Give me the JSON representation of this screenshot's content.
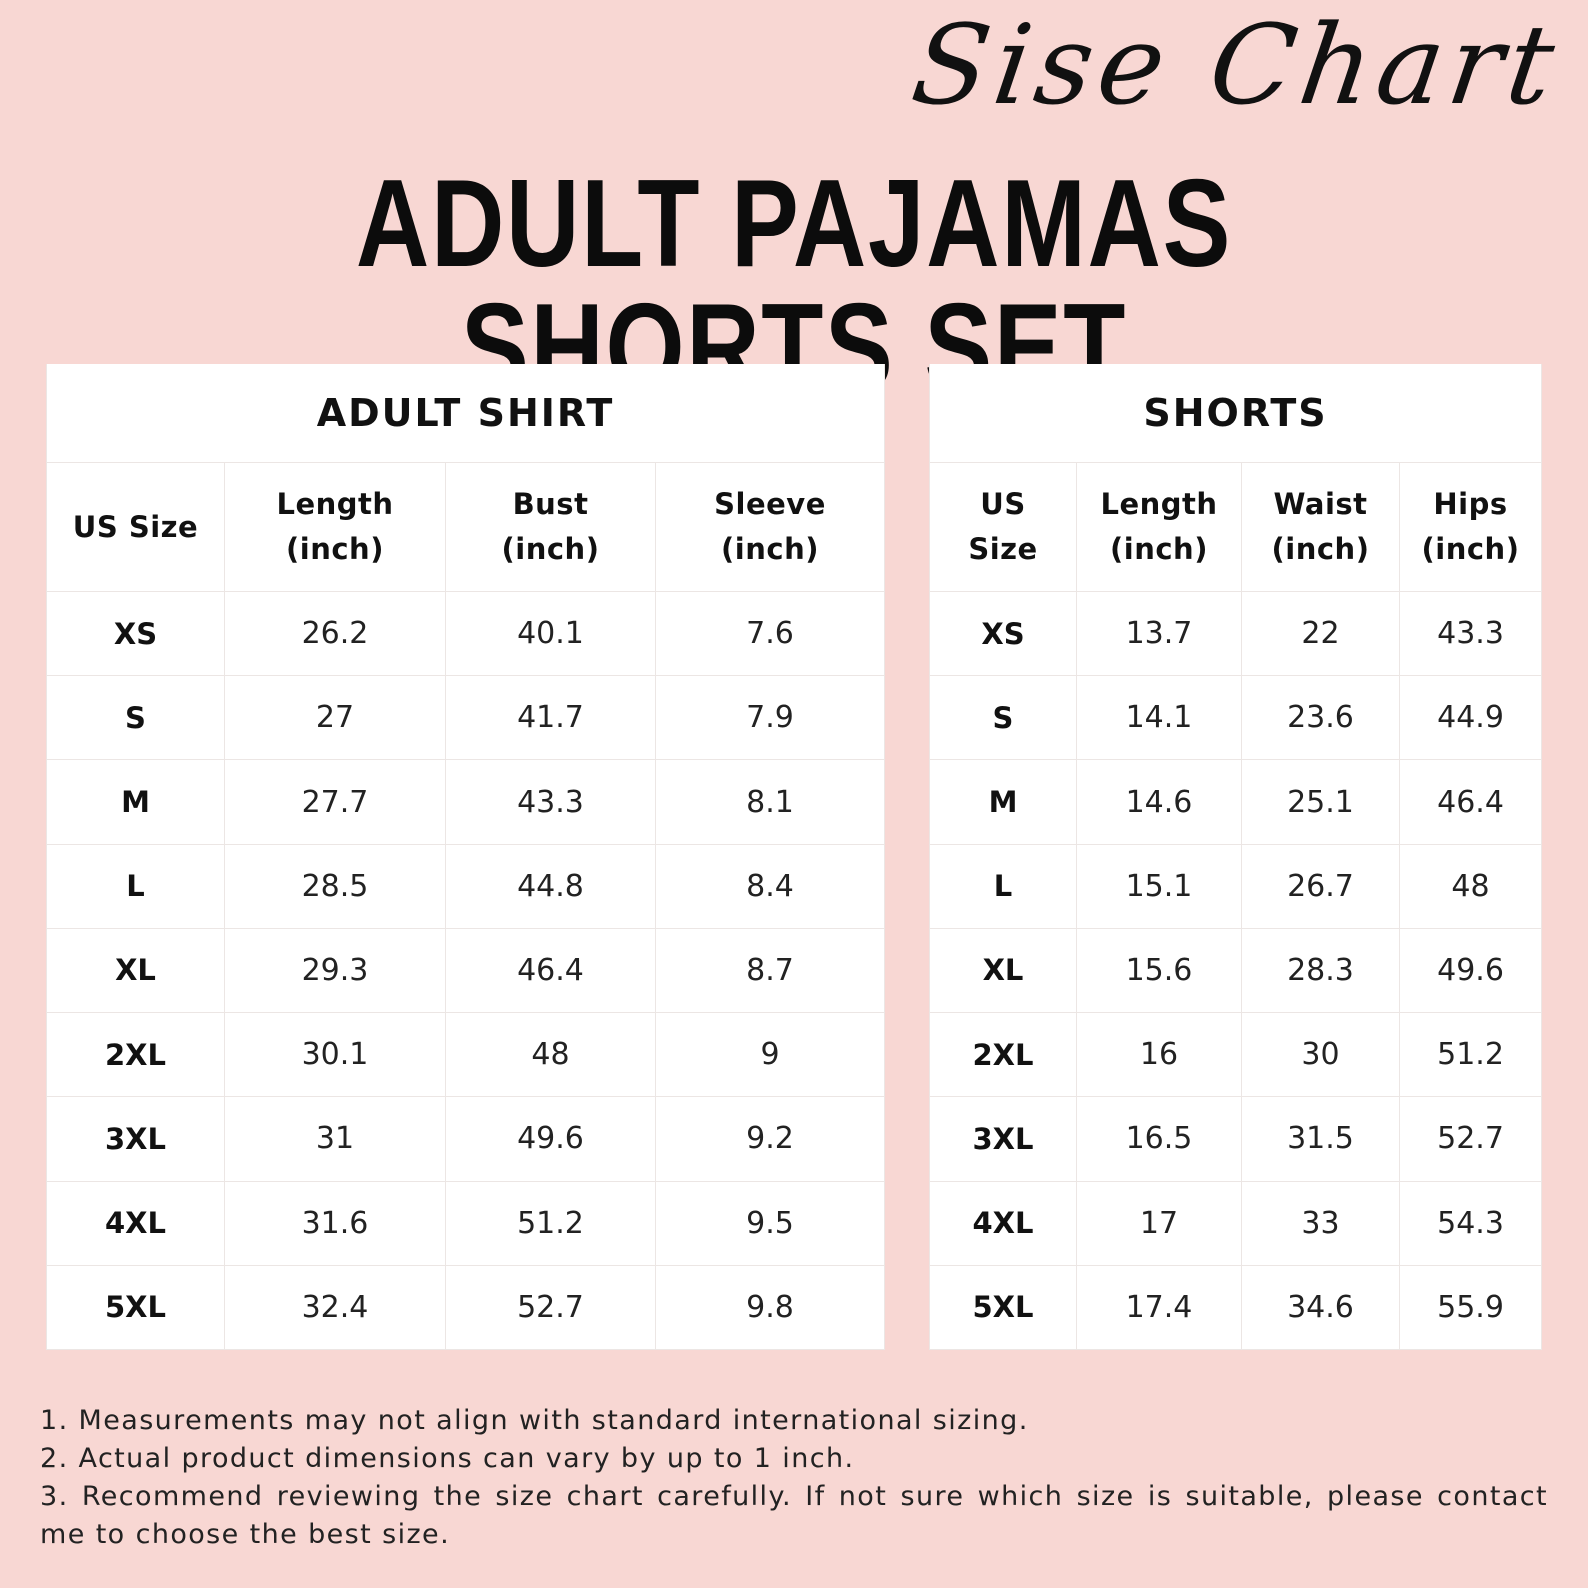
{
  "script_title": "Sise Chart",
  "main_title": "ADULT PAJAMAS SHORTS SET",
  "shirt": {
    "caption": "ADULT SHIRT",
    "headers": [
      [
        "US Size"
      ],
      [
        "Length",
        "(inch)"
      ],
      [
        "Bust",
        "(inch)"
      ],
      [
        "Sleeve",
        "(inch)"
      ]
    ],
    "rows": [
      [
        "XS",
        "26.2",
        "40.1",
        "7.6"
      ],
      [
        "S",
        "27",
        "41.7",
        "7.9"
      ],
      [
        "M",
        "27.7",
        "43.3",
        "8.1"
      ],
      [
        "L",
        "28.5",
        "44.8",
        "8.4"
      ],
      [
        "XL",
        "29.3",
        "46.4",
        "8.7"
      ],
      [
        "2XL",
        "30.1",
        "48",
        "9"
      ],
      [
        "3XL",
        "31",
        "49.6",
        "9.2"
      ],
      [
        "4XL",
        "31.6",
        "51.2",
        "9.5"
      ],
      [
        "5XL",
        "32.4",
        "52.7",
        "9.8"
      ]
    ]
  },
  "shorts": {
    "caption": "SHORTS",
    "headers": [
      [
        "US",
        "Size"
      ],
      [
        "Length",
        "(inch)"
      ],
      [
        "Waist",
        "(inch)"
      ],
      [
        "Hips",
        "(inch)"
      ]
    ],
    "rows": [
      [
        "XS",
        "13.7",
        "22",
        "43.3"
      ],
      [
        "S",
        "14.1",
        "23.6",
        "44.9"
      ],
      [
        "M",
        "14.6",
        "25.1",
        "46.4"
      ],
      [
        "L",
        "15.1",
        "26.7",
        "48"
      ],
      [
        "XL",
        "15.6",
        "28.3",
        "49.6"
      ],
      [
        "2XL",
        "16",
        "30",
        "51.2"
      ],
      [
        "3XL",
        "16.5",
        "31.5",
        "52.7"
      ],
      [
        "4XL",
        "17",
        "33",
        "54.3"
      ],
      [
        "5XL",
        "17.4",
        "34.6",
        "55.9"
      ]
    ]
  },
  "notes": [
    "1. Measurements may not align with standard international sizing.",
    "2. Actual product dimensions can vary by up to 1 inch.",
    "3. Recommend reviewing the size chart carefully. If not sure which size is suitable, please contact me to choose the best size."
  ]
}
